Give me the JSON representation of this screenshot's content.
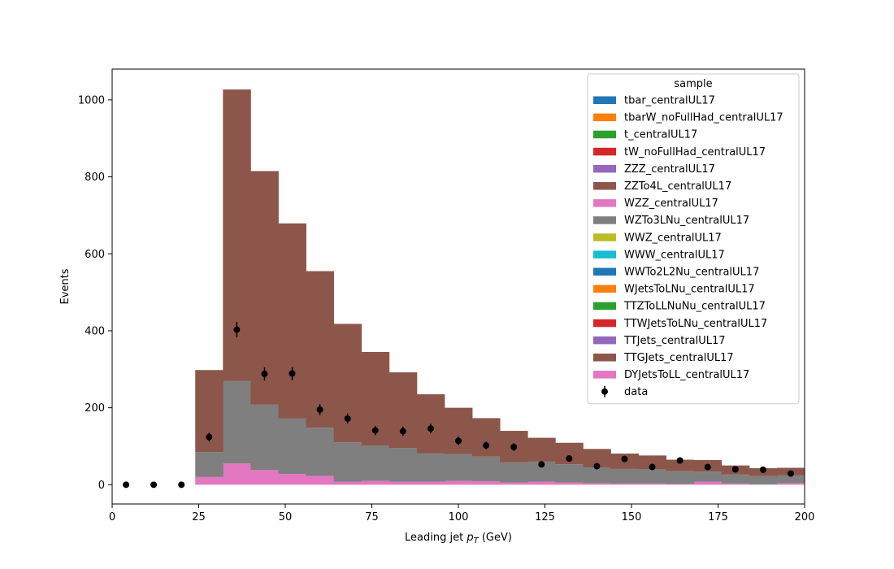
{
  "chart_data": {
    "type": "bar",
    "stacked": true,
    "histogram": true,
    "bin_edges": [
      24,
      32,
      40,
      48,
      56,
      64,
      72,
      80,
      88,
      96,
      104,
      112,
      120,
      128,
      136,
      144,
      152,
      160,
      168,
      176,
      184,
      192,
      200
    ],
    "xlabel": "Leading jet  $p_T$ (GeV)",
    "xlabel_main": "Leading jet ",
    "xlabel_symbol": "p",
    "xlabel_sub": "T",
    "xlabel_unit": " (GeV)",
    "ylabel": "Events",
    "xlim": [
      0,
      200
    ],
    "ylim": [
      -50,
      1080
    ],
    "xticks": [
      "0",
      "25",
      "50",
      "75",
      "100",
      "125",
      "150",
      "175",
      "200"
    ],
    "xtick_values": [
      0,
      25,
      50,
      75,
      100,
      125,
      150,
      175,
      200
    ],
    "yticks": [
      "0",
      "200",
      "400",
      "600",
      "800",
      "1000"
    ],
    "ytick_values": [
      0,
      200,
      400,
      600,
      800,
      1000
    ],
    "grid": false,
    "legend": {
      "title": "sample",
      "placement": "top-right",
      "entries": [
        {
          "name": "tbar_centralUL17",
          "color": "#1f77b4"
        },
        {
          "name": "tbarW_noFullHad_centralUL17",
          "color": "#ff7f0e"
        },
        {
          "name": "t_centralUL17",
          "color": "#2ca02c"
        },
        {
          "name": "tW_noFullHad_centralUL17",
          "color": "#d62728"
        },
        {
          "name": "ZZZ_centralUL17",
          "color": "#9467bd"
        },
        {
          "name": "ZZTo4L_centralUL17",
          "color": "#8c564b"
        },
        {
          "name": "WZZ_centralUL17",
          "color": "#e377c2"
        },
        {
          "name": "WZTo3LNu_centralUL17",
          "color": "#7f7f7f"
        },
        {
          "name": "WWZ_centralUL17",
          "color": "#bcbd22"
        },
        {
          "name": "WWW_centralUL17",
          "color": "#17becf"
        },
        {
          "name": "WWTo2L2Nu_centralUL17",
          "color": "#1f77b4"
        },
        {
          "name": "WJetsToLNu_centralUL17",
          "color": "#ff7f0e"
        },
        {
          "name": "TTZToLLNuNu_centralUL17",
          "color": "#2ca02c"
        },
        {
          "name": "TTWJetsToLNu_centralUL17",
          "color": "#d62728"
        },
        {
          "name": "TTJets_centralUL17",
          "color": "#9467bd"
        },
        {
          "name": "TTGJets_centralUL17",
          "color": "#8c564b"
        },
        {
          "name": "DYJetsToLL_centralUL17",
          "color": "#e377c2"
        },
        {
          "name": "data",
          "color": "#000000",
          "marker": "errorbar"
        }
      ]
    },
    "series": [
      {
        "name": "DYJetsToLL_centralUL17",
        "color": "#e377c2",
        "values": [
          20,
          55,
          38,
          28,
          23,
          8,
          10,
          8,
          8,
          10,
          9,
          6,
          8,
          6,
          4,
          3,
          3,
          2,
          8,
          3,
          1,
          4
        ]
      },
      {
        "name": "TTGJets_centralUL17",
        "color": "#8c564b",
        "values": [
          0,
          0,
          0,
          0,
          0,
          0,
          0,
          0,
          0,
          0,
          0,
          0,
          0,
          0,
          0,
          0,
          0,
          0,
          0,
          0,
          0,
          0
        ]
      },
      {
        "name": "WZTo3LNu_centralUL17",
        "color": "#7f7f7f",
        "values": [
          65,
          215,
          170,
          144,
          125,
          102,
          92,
          87,
          74,
          70,
          64,
          52,
          52,
          47,
          41,
          38,
          37,
          33,
          26,
          24,
          22,
          21
        ]
      },
      {
        "name": "ZZTo4L_centralUL17",
        "color": "#8c564b",
        "values": [
          213,
          757,
          607,
          507,
          407,
          308,
          243,
          197,
          153,
          120,
          100,
          82,
          62,
          56,
          48,
          40,
          36,
          30,
          30,
          23,
          20,
          19
        ]
      }
    ],
    "data_points": {
      "name": "data",
      "x": [
        4,
        12,
        20,
        28,
        36,
        44,
        52,
        60,
        68,
        76,
        84,
        92,
        100,
        108,
        116,
        124,
        132,
        140,
        148,
        156,
        164,
        172,
        180,
        188,
        196
      ],
      "y": [
        0,
        0,
        0,
        124,
        403,
        288,
        289,
        195,
        172,
        141,
        139,
        146,
        114,
        102,
        98,
        53,
        68,
        48,
        67,
        46,
        63,
        46,
        40,
        39,
        29
      ],
      "yerr": [
        0,
        0,
        0,
        11,
        20,
        17,
        17,
        14,
        13,
        12,
        12,
        12,
        11,
        10,
        10,
        7,
        8,
        7,
        8,
        7,
        8,
        7,
        6,
        6,
        5
      ]
    }
  }
}
